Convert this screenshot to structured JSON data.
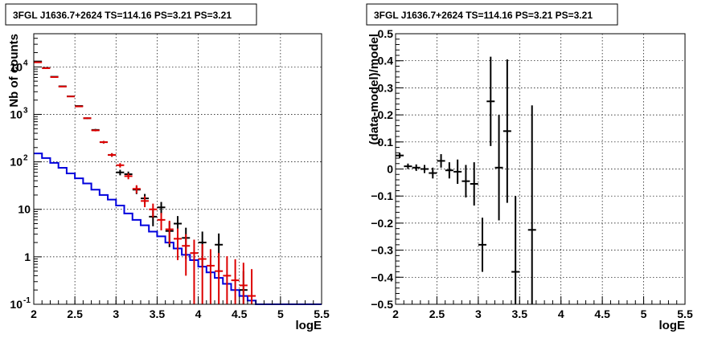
{
  "chart_data": [
    {
      "type": "line",
      "title": "3FGL J1636.7+2624 TS=114.16 PS=3.21 PS=3.21",
      "xlabel": "logE",
      "ylabel": "Nb of counts",
      "xlim": [
        2,
        5.5
      ],
      "ylim": [
        0.1,
        50000
      ],
      "yscale": "log",
      "grid": true,
      "x_ticks": [
        "2",
        "2.5",
        "3",
        "3.5",
        "4",
        "4.5",
        "5",
        "5.5"
      ],
      "y_ticks": [
        {
          "value": 0.1,
          "base": "10",
          "exp": "-1"
        },
        {
          "value": 1,
          "base": "1",
          "exp": ""
        },
        {
          "value": 10,
          "base": "10",
          "exp": ""
        },
        {
          "value": 100,
          "base": "10",
          "exp": "2"
        },
        {
          "value": 1000,
          "base": "10",
          "exp": "3"
        },
        {
          "value": 10000,
          "base": "10",
          "exp": "4"
        }
      ],
      "colors": {
        "data": "#000000",
        "model_points": "#dd0000",
        "model_line": "#0000dd"
      },
      "series": [
        {
          "role": "data",
          "x": [
            2.05,
            2.15,
            2.25,
            2.35,
            2.45,
            2.55,
            2.65,
            2.75,
            2.85,
            2.95,
            3.05,
            3.15,
            3.25,
            3.35,
            3.45,
            3.55,
            3.65,
            3.75,
            3.85,
            3.95,
            4.05,
            4.15,
            4.25,
            4.35,
            4.45,
            4.55,
            4.65
          ],
          "y": [
            13000,
            9500,
            6200,
            3900,
            2400,
            1500,
            830,
            470,
            260,
            140,
            60,
            55,
            26,
            17,
            7,
            11,
            3.5,
            5,
            2.5,
            0,
            2,
            0,
            1.8,
            0,
            0,
            0.2,
            0
          ],
          "yerr": [
            115,
            97,
            79,
            62,
            49,
            39,
            29,
            22,
            16,
            12,
            8,
            7.4,
            5,
            4.1,
            2.6,
            3.3,
            1.9,
            2.2,
            1.6,
            0,
            1.4,
            0,
            1.3,
            0,
            0,
            0.3,
            0
          ]
        },
        {
          "role": "model_points",
          "x": [
            2.05,
            2.15,
            2.25,
            2.35,
            2.45,
            2.55,
            2.65,
            2.75,
            2.85,
            2.95,
            3.05,
            3.15,
            3.25,
            3.35,
            3.45,
            3.55,
            3.65,
            3.75,
            3.85,
            3.95,
            4.05,
            4.15,
            4.25,
            4.35,
            4.45,
            4.55,
            4.65
          ],
          "y": [
            12500,
            9400,
            6100,
            3850,
            2380,
            1470,
            830,
            460,
            260,
            140,
            85,
            50,
            27,
            15,
            10,
            6,
            3.8,
            2.4,
            1.7,
            1.2,
            0.9,
            0.65,
            0.5,
            0.4,
            0.32,
            0.25,
            0.15
          ],
          "yerr": [
            112,
            97,
            78,
            62,
            49,
            38,
            29,
            21,
            16,
            12,
            9,
            7,
            5.2,
            3.9,
            3.2,
            2.4,
            1.95,
            1.55,
            1.3,
            1.1,
            0.95,
            0.8,
            0.7,
            0.63,
            0.57,
            0.5,
            0.4
          ]
        },
        {
          "role": "model_line",
          "x": [
            2.0,
            2.1,
            2.2,
            2.3,
            2.4,
            2.5,
            2.6,
            2.7,
            2.8,
            2.9,
            3.0,
            3.1,
            3.2,
            3.3,
            3.4,
            3.5,
            3.6,
            3.7,
            3.8,
            3.9,
            4.0,
            4.1,
            4.2,
            4.3,
            4.4,
            4.5,
            4.6,
            4.7,
            4.8,
            4.9,
            5.0,
            5.1,
            5.2,
            5.3,
            5.4
          ],
          "y": [
            150,
            120,
            95,
            75,
            57,
            45,
            35,
            26,
            20,
            16,
            12,
            8.2,
            6,
            4.6,
            3.4,
            2.7,
            2,
            1.5,
            1.1,
            0.85,
            0.62,
            0.47,
            0.36,
            0.27,
            0.2,
            0.15,
            0.12,
            0.1,
            0.1,
            0.1,
            0.1,
            0.1,
            0.1,
            0.1,
            0.1
          ]
        }
      ]
    },
    {
      "type": "scatter",
      "title": "3FGL J1636.7+2624 TS=114.16 PS=3.21 PS=3.21",
      "xlabel": "logE",
      "ylabel": "(data-model)/model",
      "xlim": [
        2,
        5.5
      ],
      "ylim": [
        -0.5,
        0.5
      ],
      "grid": true,
      "x_ticks": [
        "2",
        "2.5",
        "3",
        "3.5",
        "4",
        "4.5",
        "5",
        "5.5"
      ],
      "y_ticks": [
        "−0.5",
        "−0.4",
        "−0.3",
        "−0.2",
        "−0.1",
        "0",
        "0.1",
        "0.2",
        "0.3",
        "0.4",
        "0.5"
      ],
      "y_tick_values": [
        -0.5,
        -0.4,
        -0.3,
        -0.2,
        -0.1,
        0,
        0.1,
        0.2,
        0.3,
        0.4,
        0.5
      ],
      "colors": {
        "points": "#000000"
      },
      "series": [
        {
          "x": [
            2.05,
            2.15,
            2.25,
            2.35,
            2.45,
            2.55,
            2.65,
            2.75,
            2.85,
            2.95,
            3.05,
            3.15,
            3.25,
            3.35,
            3.45,
            3.65
          ],
          "y": [
            0.05,
            0.01,
            0.005,
            0.0,
            -0.015,
            0.03,
            -0.005,
            -0.01,
            -0.045,
            -0.055,
            -0.28,
            0.25,
            0.005,
            0.14,
            -0.38,
            -0.225
          ],
          "yerr": [
            0.01,
            0.01,
            0.012,
            0.015,
            0.02,
            0.025,
            0.03,
            0.045,
            0.06,
            0.08,
            0.1,
            0.165,
            0.195,
            0.265,
            0.28,
            0.46
          ]
        }
      ]
    }
  ]
}
